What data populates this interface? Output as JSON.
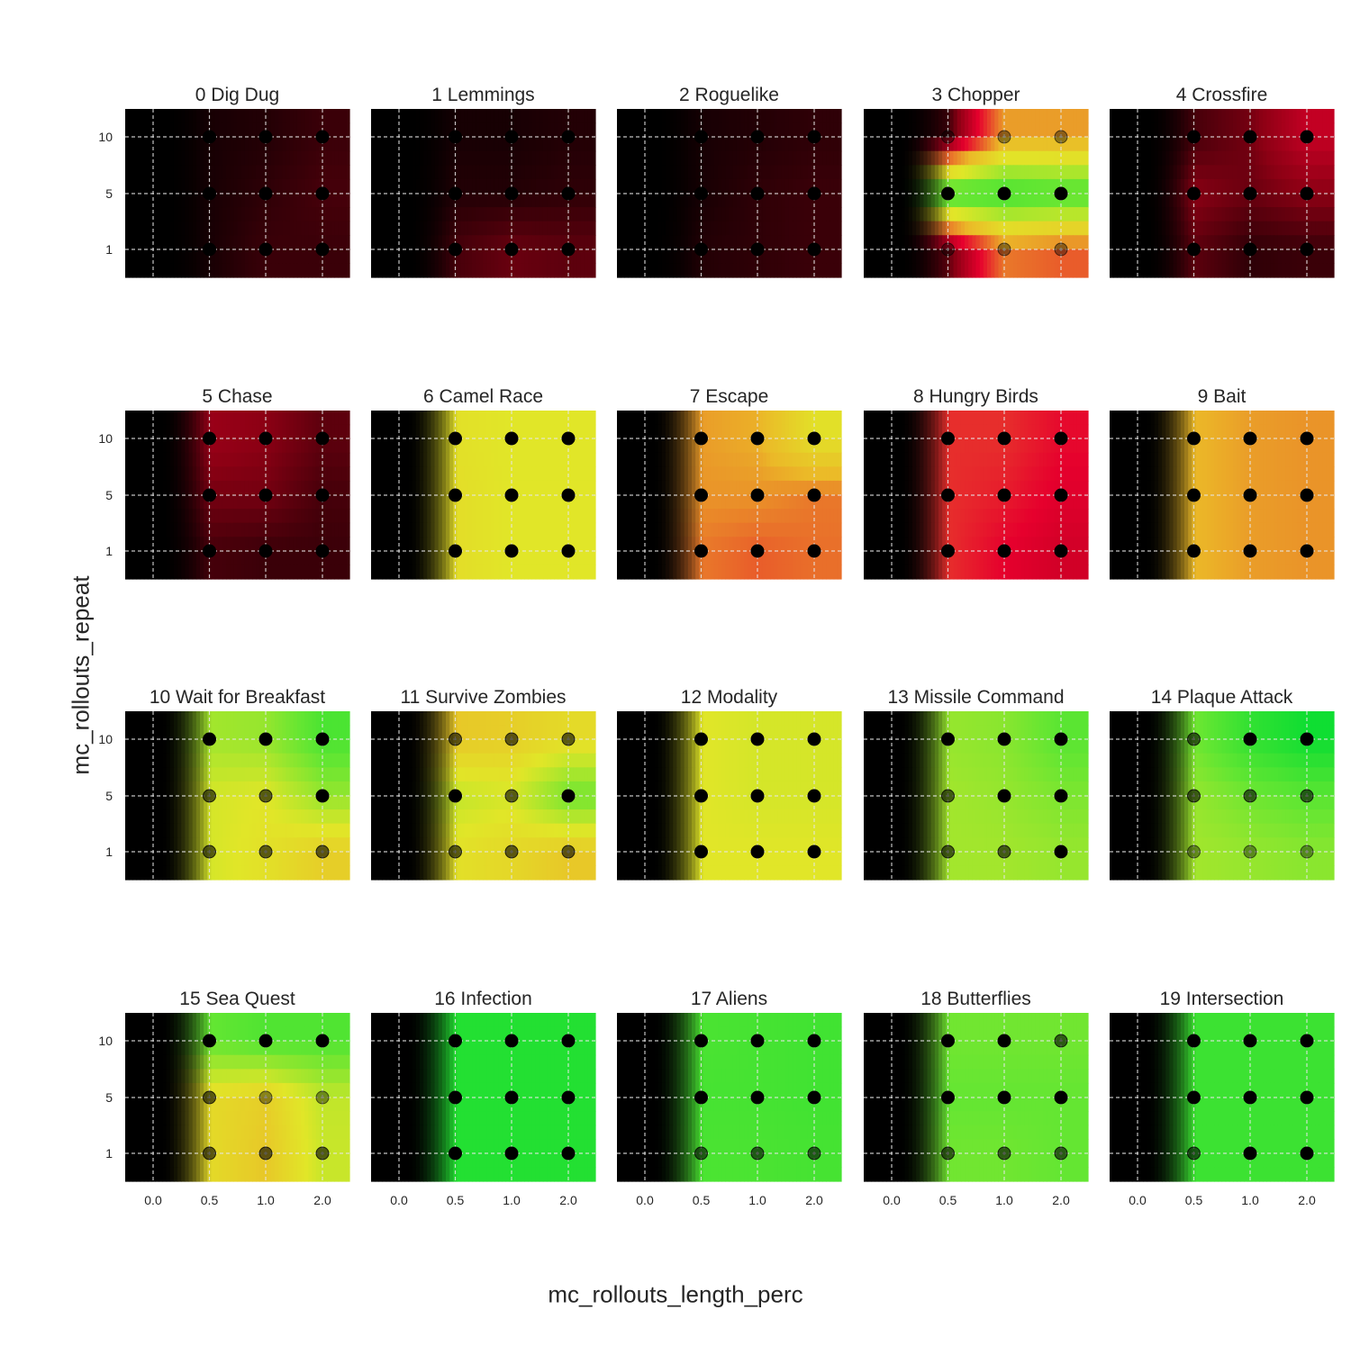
{
  "figure": {
    "xlabel": "mc_rollouts_length_perc",
    "ylabel": "mc_rollouts_repeat"
  },
  "chart_data": {
    "type": "heatmap",
    "layout": "small-multiples",
    "x_ticks": [
      "0.0",
      "0.5",
      "1.0",
      "2.0"
    ],
    "y_ticks": [
      "1",
      "5",
      "10"
    ],
    "x_values": [
      0.5,
      1.0,
      2.0
    ],
    "y_values": [
      1,
      5,
      10
    ],
    "colormap": "black-red-yellow-green",
    "point_color": "#000000",
    "grid": true,
    "panels": [
      {
        "title": "0 Dig Dug",
        "grid": [
          [
            0.02,
            0.03,
            0.05
          ],
          [
            0.02,
            0.04,
            0.06
          ],
          [
            0.02,
            0.05,
            0.05
          ]
        ],
        "alpha": [
          [
            1,
            1,
            1
          ],
          [
            1,
            1,
            1
          ],
          [
            1,
            1,
            1
          ]
        ]
      },
      {
        "title": "1 Lemmings",
        "grid": [
          [
            0.02,
            0.02,
            0.03
          ],
          [
            0.03,
            0.03,
            0.04
          ],
          [
            0.06,
            0.09,
            0.08
          ]
        ],
        "alpha": [
          [
            1,
            1,
            1
          ],
          [
            1,
            1,
            1
          ],
          [
            1,
            1,
            1
          ]
        ]
      },
      {
        "title": "2 Roguelike",
        "grid": [
          [
            0.02,
            0.03,
            0.04
          ],
          [
            0.02,
            0.04,
            0.05
          ],
          [
            0.03,
            0.04,
            0.05
          ]
        ],
        "alpha": [
          [
            1,
            1,
            1
          ],
          [
            1,
            1,
            1
          ],
          [
            1,
            1,
            1
          ]
        ]
      },
      {
        "title": "3 Chopper",
        "grid": [
          [
            0.05,
            0.42,
            0.42
          ],
          [
            0.88,
            0.88,
            0.85
          ],
          [
            0.08,
            0.38,
            0.35
          ]
        ],
        "alpha": [
          [
            0.4,
            0.4,
            0.4
          ],
          [
            1,
            1,
            1
          ],
          [
            0.4,
            0.4,
            0.4
          ]
        ]
      },
      {
        "title": "4 Crossfire",
        "grid": [
          [
            0.06,
            0.1,
            0.2
          ],
          [
            0.12,
            0.09,
            0.12
          ],
          [
            0.08,
            0.04,
            0.05
          ]
        ],
        "alpha": [
          [
            1,
            1,
            1
          ],
          [
            1,
            1,
            1
          ],
          [
            1,
            1,
            1
          ]
        ]
      },
      {
        "title": "5 Chase",
        "grid": [
          [
            0.14,
            0.12,
            0.08
          ],
          [
            0.1,
            0.1,
            0.06
          ],
          [
            0.06,
            0.05,
            0.05
          ]
        ],
        "alpha": [
          [
            1,
            1,
            1
          ],
          [
            1,
            1,
            1
          ],
          [
            1,
            1,
            1
          ]
        ]
      },
      {
        "title": "6 Camel Race",
        "grid": [
          [
            0.58,
            0.6,
            0.6
          ],
          [
            0.57,
            0.6,
            0.6
          ],
          [
            0.57,
            0.6,
            0.6
          ]
        ],
        "alpha": [
          [
            1,
            1,
            1
          ],
          [
            1,
            1,
            1
          ],
          [
            1,
            1,
            1
          ]
        ]
      },
      {
        "title": "7 Escape",
        "grid": [
          [
            0.42,
            0.44,
            0.58
          ],
          [
            0.41,
            0.41,
            0.38
          ],
          [
            0.38,
            0.35,
            0.37
          ]
        ],
        "alpha": [
          [
            1,
            1,
            1
          ],
          [
            1,
            1,
            1
          ],
          [
            1,
            1,
            1
          ]
        ]
      },
      {
        "title": "8 Hungry Birds",
        "grid": [
          [
            0.3,
            0.3,
            0.26
          ],
          [
            0.3,
            0.28,
            0.24
          ],
          [
            0.3,
            0.25,
            0.22
          ]
        ],
        "alpha": [
          [
            1,
            1,
            1
          ],
          [
            1,
            1,
            1
          ],
          [
            1,
            1,
            1
          ]
        ]
      },
      {
        "title": "9 Bait",
        "grid": [
          [
            0.45,
            0.42,
            0.41
          ],
          [
            0.45,
            0.42,
            0.41
          ],
          [
            0.45,
            0.42,
            0.41
          ]
        ],
        "alpha": [
          [
            1,
            1,
            1
          ],
          [
            1,
            1,
            1
          ],
          [
            1,
            1,
            1
          ]
        ]
      },
      {
        "title": "10 Wait for Breakfast",
        "grid": [
          [
            0.7,
            0.72,
            0.85
          ],
          [
            0.62,
            0.6,
            0.72
          ],
          [
            0.62,
            0.58,
            0.52
          ]
        ],
        "alpha": [
          [
            1,
            1,
            1
          ],
          [
            0.6,
            0.6,
            1
          ],
          [
            0.6,
            0.6,
            0.6
          ]
        ]
      },
      {
        "title": "11 Survive Zombies",
        "grid": [
          [
            0.5,
            0.52,
            0.56
          ],
          [
            0.65,
            0.62,
            0.78
          ],
          [
            0.58,
            0.55,
            0.5
          ]
        ],
        "alpha": [
          [
            0.6,
            0.6,
            0.6
          ],
          [
            1,
            0.6,
            1
          ],
          [
            0.6,
            0.6,
            0.6
          ]
        ]
      },
      {
        "title": "12 Modality",
        "grid": [
          [
            0.6,
            0.62,
            0.62
          ],
          [
            0.6,
            0.62,
            0.62
          ],
          [
            0.6,
            0.6,
            0.6
          ]
        ],
        "alpha": [
          [
            1,
            1,
            1
          ],
          [
            1,
            1,
            1
          ],
          [
            1,
            1,
            1
          ]
        ]
      },
      {
        "title": "13 Missile Command",
        "grid": [
          [
            0.72,
            0.74,
            0.82
          ],
          [
            0.7,
            0.72,
            0.76
          ],
          [
            0.7,
            0.7,
            0.72
          ]
        ],
        "alpha": [
          [
            1,
            1,
            1
          ],
          [
            0.6,
            1,
            1
          ],
          [
            0.6,
            0.6,
            1
          ]
        ]
      },
      {
        "title": "14 Plaque Attack",
        "grid": [
          [
            0.78,
            0.9,
            0.97
          ],
          [
            0.72,
            0.78,
            0.82
          ],
          [
            0.7,
            0.72,
            0.74
          ]
        ],
        "alpha": [
          [
            0.6,
            1,
            1
          ],
          [
            0.6,
            0.6,
            0.6
          ],
          [
            0.4,
            0.4,
            0.4
          ]
        ]
      },
      {
        "title": "15 Sea Quest",
        "grid": [
          [
            0.8,
            0.84,
            0.84
          ],
          [
            0.56,
            0.52,
            0.65
          ],
          [
            0.56,
            0.5,
            0.64
          ]
        ],
        "alpha": [
          [
            1,
            1,
            1
          ],
          [
            0.6,
            0.4,
            0.4
          ],
          [
            0.6,
            0.6,
            0.6
          ]
        ]
      },
      {
        "title": "16 Infection",
        "grid": [
          [
            0.93,
            0.93,
            0.93
          ],
          [
            0.93,
            0.93,
            0.93
          ],
          [
            0.93,
            0.93,
            0.93
          ]
        ],
        "alpha": [
          [
            1,
            1,
            1
          ],
          [
            1,
            1,
            1
          ],
          [
            1,
            1,
            1
          ]
        ]
      },
      {
        "title": "17 Aliens",
        "grid": [
          [
            0.85,
            0.86,
            0.87
          ],
          [
            0.86,
            0.86,
            0.87
          ],
          [
            0.85,
            0.85,
            0.86
          ]
        ],
        "alpha": [
          [
            1,
            1,
            1
          ],
          [
            1,
            1,
            1
          ],
          [
            0.6,
            0.6,
            0.6
          ]
        ]
      },
      {
        "title": "18 Butterflies",
        "grid": [
          [
            0.78,
            0.78,
            0.78
          ],
          [
            0.8,
            0.8,
            0.8
          ],
          [
            0.78,
            0.78,
            0.8
          ]
        ],
        "alpha": [
          [
            1,
            1,
            0.6
          ],
          [
            1,
            1,
            1
          ],
          [
            0.6,
            0.6,
            0.6
          ]
        ]
      },
      {
        "title": "19 Intersection",
        "grid": [
          [
            0.88,
            0.88,
            0.88
          ],
          [
            0.88,
            0.88,
            0.88
          ],
          [
            0.88,
            0.88,
            0.88
          ]
        ],
        "alpha": [
          [
            1,
            1,
            1
          ],
          [
            1,
            1,
            1
          ],
          [
            0.6,
            1,
            1
          ]
        ]
      }
    ]
  }
}
